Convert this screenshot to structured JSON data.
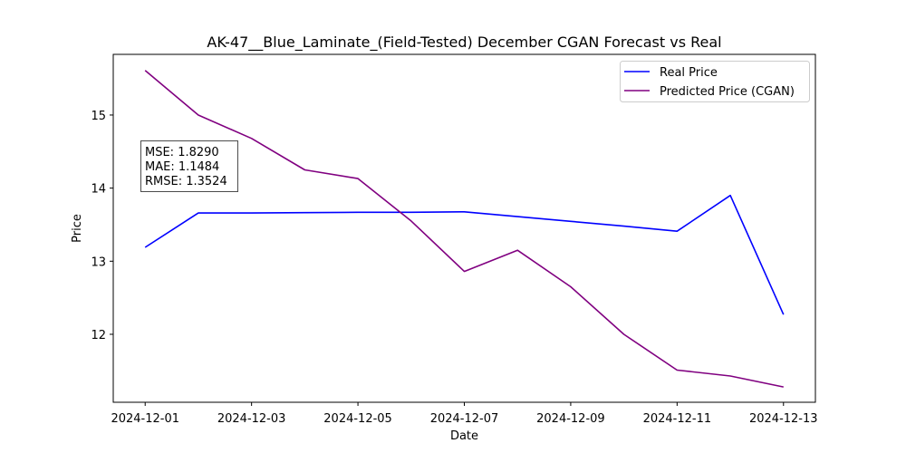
{
  "chart_data": {
    "type": "line",
    "title": "AK-47__Blue_Laminate_(Field-Tested) December CGAN Forecast vs Real",
    "xlabel": "Date",
    "ylabel": "Price",
    "x": [
      "2024-12-01",
      "2024-12-02",
      "2024-12-03",
      "2024-12-04",
      "2024-12-05",
      "2024-12-06",
      "2024-12-07",
      "2024-12-08",
      "2024-12-09",
      "2024-12-10",
      "2024-12-11",
      "2024-12-12",
      "2024-12-13"
    ],
    "x_ticks": [
      "2024-12-01",
      "2024-12-03",
      "2024-12-05",
      "2024-12-07",
      "2024-12-09",
      "2024-12-11",
      "2024-12-13"
    ],
    "y_ticks": [
      12,
      13,
      14,
      15
    ],
    "xlim": [
      "2024-11-30T09:36",
      "2024-12-13T14:24"
    ],
    "ylim": [
      11.07,
      15.83
    ],
    "grid": false,
    "legend_position": "top-right",
    "series": [
      {
        "name": "Real Price",
        "color": "#0000ff",
        "values": [
          13.19,
          13.66,
          13.66,
          13.665,
          13.67,
          13.67,
          13.675,
          13.61,
          13.545,
          13.48,
          13.41,
          13.9,
          12.27
        ]
      },
      {
        "name": "Predicted Price (CGAN)",
        "color": "#800080",
        "values": [
          15.61,
          15.0,
          14.68,
          14.25,
          14.13,
          13.55,
          12.86,
          13.15,
          12.65,
          12.0,
          11.51,
          11.43,
          11.28
        ]
      }
    ],
    "annotation": {
      "lines": [
        "MSE: 1.8290",
        "MAE: 1.1484",
        "RMSE: 1.3524"
      ]
    }
  }
}
